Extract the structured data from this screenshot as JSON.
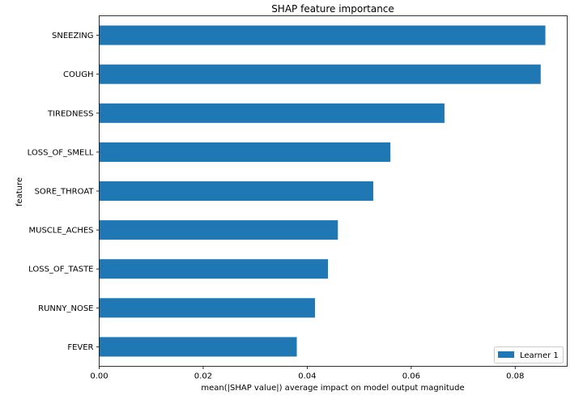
{
  "chart_data": {
    "type": "bar",
    "orientation": "horizontal",
    "title": "SHAP feature importance",
    "xlabel": "mean(|SHAP value|) average impact on model output magnitude",
    "ylabel": "feature",
    "categories": [
      "SNEEZING",
      "COUGH",
      "TIREDNESS",
      "LOSS_OF_SMELL",
      "SORE_THROAT",
      "MUSCLE_ACHES",
      "LOSS_OF_TASTE",
      "RUNNY_NOSE",
      "FEVER"
    ],
    "series": [
      {
        "name": "Learner 1",
        "color": "#1f77b4",
        "values": [
          0.0858,
          0.0849,
          0.0664,
          0.056,
          0.0527,
          0.0459,
          0.044,
          0.0415,
          0.038
        ]
      }
    ],
    "xlim": [
      0,
      0.09
    ],
    "xticks": [
      0.0,
      0.02,
      0.04,
      0.06,
      0.08
    ],
    "xtick_labels": [
      "0.00",
      "0.02",
      "0.04",
      "0.06",
      "0.08"
    ],
    "grid": false,
    "legend_position": "lower right"
  }
}
